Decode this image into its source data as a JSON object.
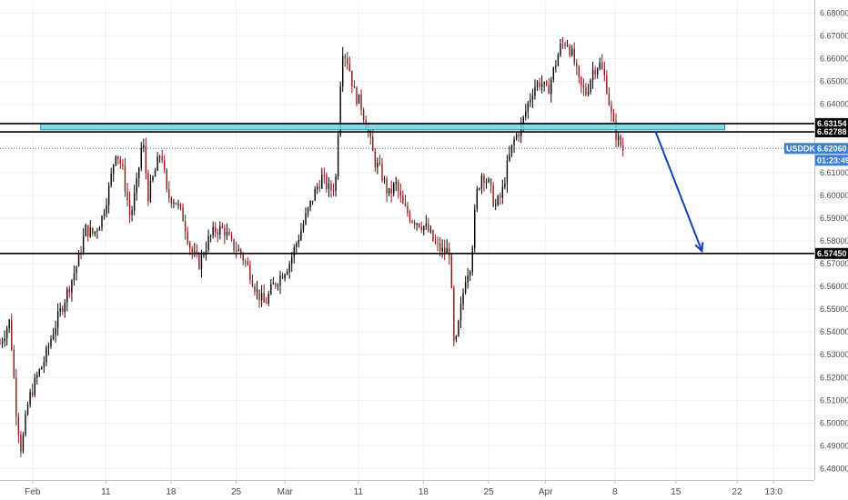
{
  "chart_data": {
    "type": "candlestick",
    "symbol": "USDDKK",
    "countdown": "01:23:49",
    "last_price": 6.6206,
    "colors": {
      "up": "#000000",
      "down": "#8b1a1a",
      "zone_fill": "#6fd3e3",
      "zone_border": "#2b8fb3",
      "arrow": "#1443b4",
      "last_price_tag": "#3a7fd1",
      "grid": "#eef1f6"
    },
    "y_axis": {
      "range": [
        6.475,
        6.685
      ],
      "ticks": [
        "6.68000",
        "6.67000",
        "6.66000",
        "6.65000",
        "6.64000",
        "6.61000",
        "6.60000",
        "6.59000",
        "6.58000",
        "6.57000",
        "6.56000",
        "6.55000",
        "6.54000",
        "6.53000",
        "6.52000",
        "6.51000",
        "6.50000",
        "6.49000",
        "6.48000"
      ]
    },
    "x_axis": {
      "ticks": [
        {
          "label": "Feb",
          "pos": 0.04
        },
        {
          "label": "11",
          "pos": 0.13
        },
        {
          "label": "18",
          "pos": 0.21
        },
        {
          "label": "25",
          "pos": 0.29
        },
        {
          "label": "Mar",
          "pos": 0.35
        },
        {
          "label": "11",
          "pos": 0.44
        },
        {
          "label": "18",
          "pos": 0.52
        },
        {
          "label": "25",
          "pos": 0.6
        },
        {
          "label": "Apr",
          "pos": 0.67
        },
        {
          "label": "8",
          "pos": 0.755
        },
        {
          "label": "15",
          "pos": 0.83
        },
        {
          "label": "22",
          "pos": 0.905
        },
        {
          "label": "13:0",
          "pos": 0.95
        }
      ]
    },
    "levels": [
      {
        "label": "6.63154",
        "value": 6.63154,
        "tag_color": "#000000",
        "text_color": "#ffffff"
      },
      {
        "label": "6.62788",
        "value": 6.62788,
        "tag_color": "#000000",
        "text_color": "#ffffff"
      },
      {
        "label": "6.57450",
        "value": 6.5745,
        "tag_color": "#000000",
        "text_color": "#ffffff"
      }
    ],
    "resistance_zone": {
      "top": 6.6315,
      "bottom": 6.6288,
      "x_start": 0.05,
      "x_end": 0.89
    },
    "projection_arrow": {
      "from": {
        "x": 0.805,
        "y": 6.628
      },
      "to": {
        "x": 0.862,
        "y": 6.5755
      }
    },
    "price_path": [
      [
        0.0,
        6.535
      ],
      [
        0.012,
        6.545
      ],
      [
        0.02,
        6.505
      ],
      [
        0.026,
        6.488
      ],
      [
        0.035,
        6.51
      ],
      [
        0.045,
        6.52
      ],
      [
        0.055,
        6.528
      ],
      [
        0.065,
        6.54
      ],
      [
        0.075,
        6.55
      ],
      [
        0.085,
        6.56
      ],
      [
        0.095,
        6.57
      ],
      [
        0.105,
        6.585
      ],
      [
        0.115,
        6.583
      ],
      [
        0.125,
        6.59
      ],
      [
        0.135,
        6.605
      ],
      [
        0.142,
        6.62
      ],
      [
        0.15,
        6.612
      ],
      [
        0.16,
        6.59
      ],
      [
        0.168,
        6.605
      ],
      [
        0.175,
        6.625
      ],
      [
        0.182,
        6.6
      ],
      [
        0.19,
        6.61
      ],
      [
        0.198,
        6.62
      ],
      [
        0.205,
        6.6
      ],
      [
        0.215,
        6.598
      ],
      [
        0.225,
        6.59
      ],
      [
        0.235,
        6.575
      ],
      [
        0.245,
        6.57
      ],
      [
        0.255,
        6.58
      ],
      [
        0.265,
        6.585
      ],
      [
        0.275,
        6.585
      ],
      [
        0.285,
        6.578
      ],
      [
        0.295,
        6.575
      ],
      [
        0.305,
        6.568
      ],
      [
        0.315,
        6.558
      ],
      [
        0.325,
        6.552
      ],
      [
        0.335,
        6.56
      ],
      [
        0.345,
        6.565
      ],
      [
        0.355,
        6.57
      ],
      [
        0.365,
        6.58
      ],
      [
        0.375,
        6.59
      ],
      [
        0.385,
        6.6
      ],
      [
        0.395,
        6.608
      ],
      [
        0.405,
        6.602
      ],
      [
        0.412,
        6.605
      ],
      [
        0.42,
        6.665
      ],
      [
        0.428,
        6.658
      ],
      [
        0.435,
        6.645
      ],
      [
        0.443,
        6.64
      ],
      [
        0.452,
        6.628
      ],
      [
        0.46,
        6.615
      ],
      [
        0.468,
        6.61
      ],
      [
        0.477,
        6.6
      ],
      [
        0.486,
        6.605
      ],
      [
        0.495,
        6.595
      ],
      [
        0.505,
        6.59
      ],
      [
        0.515,
        6.588
      ],
      [
        0.525,
        6.585
      ],
      [
        0.535,
        6.578
      ],
      [
        0.545,
        6.575
      ],
      [
        0.552,
        6.576
      ],
      [
        0.558,
        6.53
      ],
      [
        0.565,
        6.548
      ],
      [
        0.572,
        6.565
      ],
      [
        0.578,
        6.57
      ],
      [
        0.585,
        6.6
      ],
      [
        0.592,
        6.61
      ],
      [
        0.6,
        6.605
      ],
      [
        0.608,
        6.595
      ],
      [
        0.616,
        6.6
      ],
      [
        0.624,
        6.615
      ],
      [
        0.632,
        6.625
      ],
      [
        0.64,
        6.63
      ],
      [
        0.648,
        6.64
      ],
      [
        0.656,
        6.648
      ],
      [
        0.664,
        6.65
      ],
      [
        0.672,
        6.645
      ],
      [
        0.68,
        6.655
      ],
      [
        0.688,
        6.665
      ],
      [
        0.696,
        6.668
      ],
      [
        0.704,
        6.66
      ],
      [
        0.712,
        6.648
      ],
      [
        0.72,
        6.645
      ],
      [
        0.728,
        6.655
      ],
      [
        0.736,
        6.658
      ],
      [
        0.744,
        6.65
      ],
      [
        0.752,
        6.632
      ],
      [
        0.758,
        6.625
      ],
      [
        0.765,
        6.62
      ]
    ]
  }
}
